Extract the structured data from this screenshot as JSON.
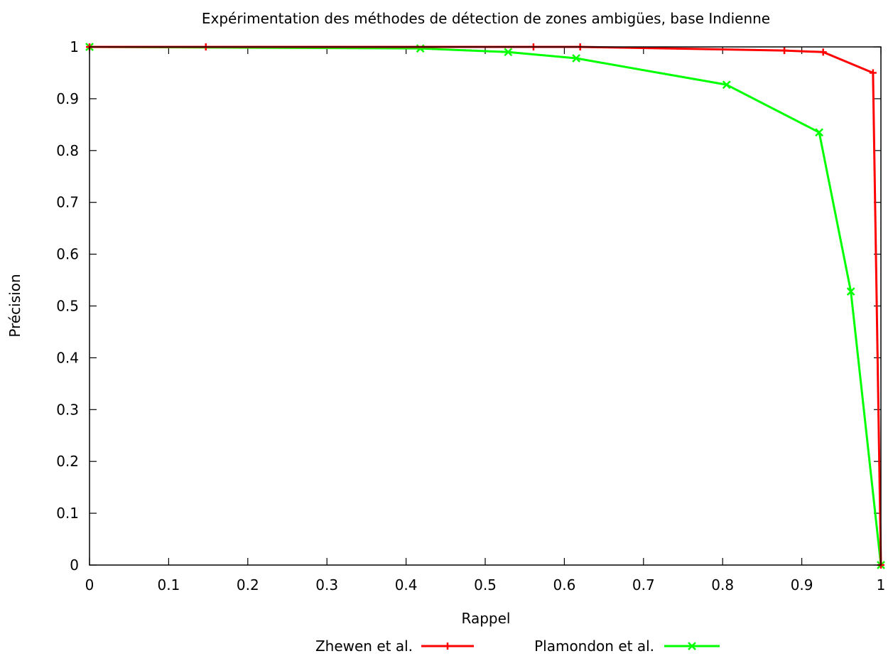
{
  "chart_data": {
    "type": "line",
    "title": "Expérimentation des méthodes de détection de zones ambigües, base Indienne",
    "xlabel": "Rappel",
    "ylabel": "Précision",
    "xlim": [
      0,
      1
    ],
    "ylim": [
      0,
      1
    ],
    "grid": false,
    "legend_placement": "bottom-center",
    "x_ticks": [
      "0",
      "0.1",
      "0.2",
      "0.3",
      "0.4",
      "0.5",
      "0.6",
      "0.7",
      "0.8",
      "0.9",
      "1"
    ],
    "y_ticks": [
      "0",
      "0.1",
      "0.2",
      "0.3",
      "0.4",
      "0.5",
      "0.6",
      "0.7",
      "0.8",
      "0.9",
      "1"
    ],
    "series": [
      {
        "name": "Zhewen et al.",
        "color": "#ff0000",
        "marker": "plus",
        "points": [
          [
            0.0,
            1.0
          ],
          [
            0.147,
            1.0
          ],
          [
            0.561,
            1.0
          ],
          [
            0.62,
            1.0
          ],
          [
            0.878,
            0.993
          ],
          [
            0.927,
            0.99
          ],
          [
            0.99,
            0.95
          ],
          [
            1.0,
            0.0
          ]
        ]
      },
      {
        "name": "Plamondon et al.",
        "color": "#00ff00",
        "marker": "cross",
        "points": [
          [
            0.0,
            1.0
          ],
          [
            0.418,
            0.997
          ],
          [
            0.529,
            0.99
          ],
          [
            0.615,
            0.978
          ],
          [
            0.805,
            0.927
          ],
          [
            0.922,
            0.835
          ],
          [
            0.962,
            0.528
          ],
          [
            1.0,
            0.0
          ]
        ]
      }
    ]
  }
}
